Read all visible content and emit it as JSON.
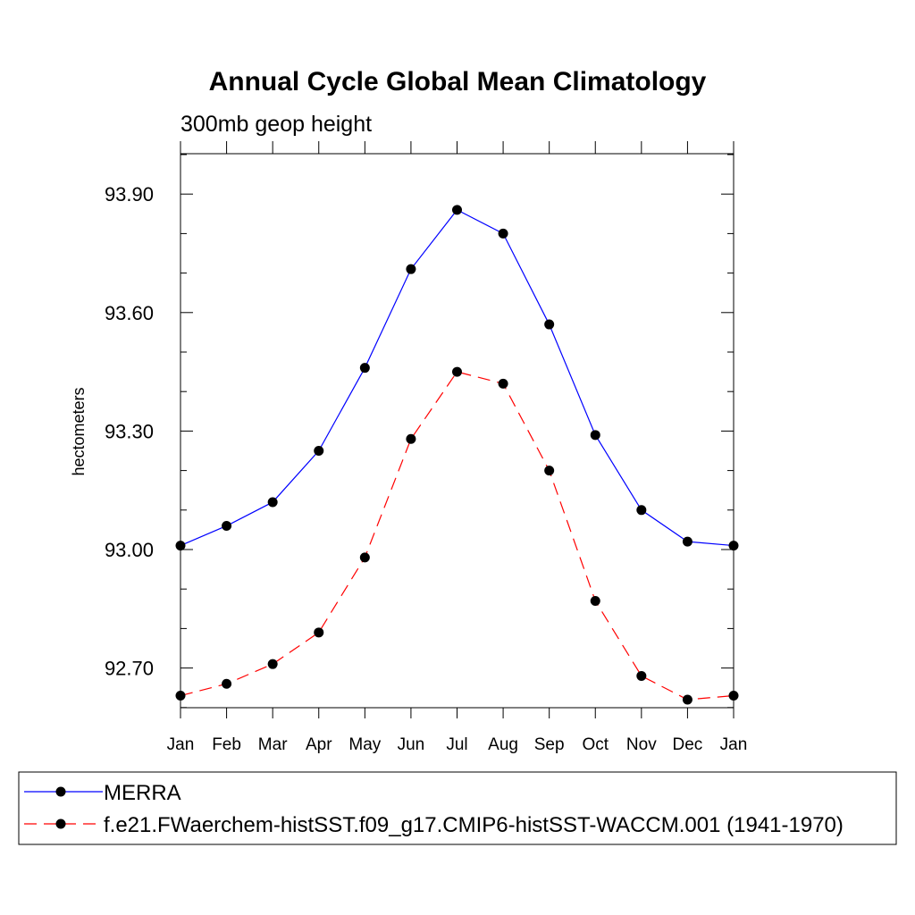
{
  "chart_data": {
    "type": "line",
    "title": "Annual Cycle Global Mean Climatology",
    "subtitle": "300mb geop height",
    "xlabel": "",
    "ylabel": "hectometers",
    "categories": [
      "Jan",
      "Feb",
      "Mar",
      "Apr",
      "May",
      "Jun",
      "Jul",
      "Aug",
      "Sep",
      "Oct",
      "Nov",
      "Dec",
      "Jan"
    ],
    "ylim": [
      92.6,
      94.0
    ],
    "yticks": [
      92.7,
      93.0,
      93.3,
      93.6,
      93.9
    ],
    "ytick_labels": [
      "92.70",
      "93.00",
      "93.30",
      "93.60",
      "93.90"
    ],
    "grid": false,
    "legend_position": "bottom",
    "series": [
      {
        "name": "MERRA",
        "color": "#0000ff",
        "dashed": false,
        "values": [
          93.01,
          93.06,
          93.12,
          93.25,
          93.46,
          93.71,
          93.86,
          93.8,
          93.57,
          93.29,
          93.1,
          93.02,
          93.01
        ]
      },
      {
        "name": "f.e21.FWaerchem-histSST.f09_g17.CMIP6-histSST-WACCM.001 (1941-1970)",
        "color": "#ff0000",
        "dashed": true,
        "values": [
          92.63,
          92.66,
          92.71,
          92.79,
          92.98,
          93.28,
          93.45,
          93.42,
          93.2,
          92.87,
          92.68,
          92.62,
          92.63
        ]
      }
    ]
  }
}
